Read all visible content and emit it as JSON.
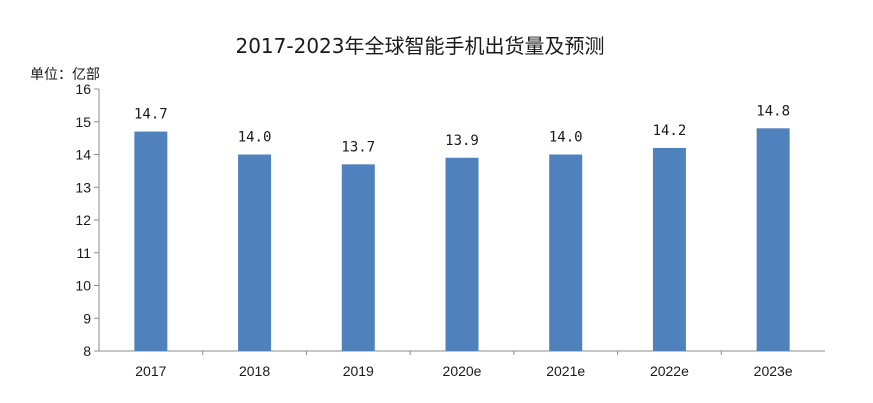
{
  "chart_data": {
    "type": "bar",
    "title": "2017-2023年全球智能手机出货量及预测",
    "unit_label": "单位：亿部",
    "xlabel": "",
    "ylabel": "",
    "categories": [
      "2017",
      "2018",
      "2019",
      "2020e",
      "2021e",
      "2022e",
      "2023e"
    ],
    "values": [
      14.7,
      14.0,
      13.7,
      13.9,
      14.0,
      14.2,
      14.8
    ],
    "value_labels": [
      "14.7",
      "14.0",
      "13.7",
      "13.9",
      "14.0",
      "14.2",
      "14.8"
    ],
    "ylim": [
      8,
      16
    ],
    "yticks": [
      8,
      9,
      10,
      11,
      12,
      13,
      14,
      15,
      16
    ],
    "ytick_labels": [
      "8",
      "9",
      "10",
      "11",
      "12",
      "13",
      "14",
      "15",
      "16"
    ],
    "bar_color": "#4f81bd",
    "grid": false,
    "legend": "none"
  }
}
